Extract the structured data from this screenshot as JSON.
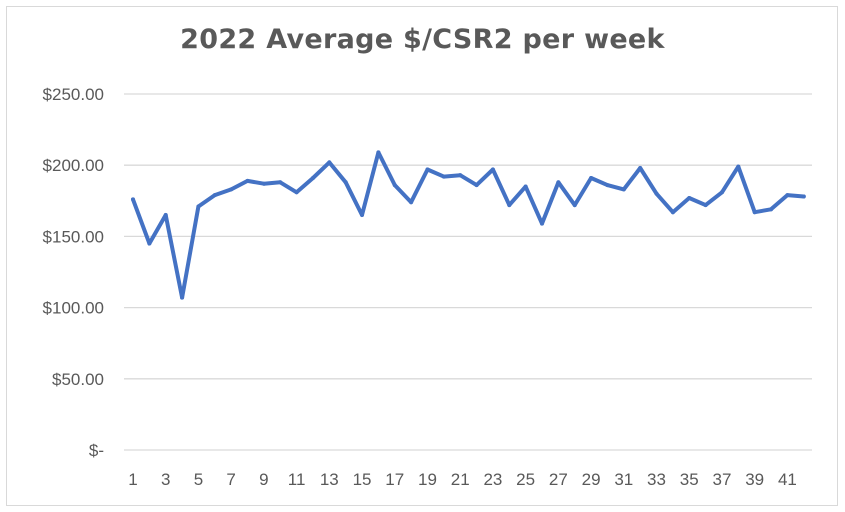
{
  "chart_data": {
    "type": "line",
    "title": "2022 Average $/CSR2 per week",
    "xlabel": "",
    "ylabel": "",
    "ylim": [
      0,
      250
    ],
    "yticks": [
      {
        "value": 250,
        "label": "$250.00"
      },
      {
        "value": 200,
        "label": "$200.00"
      },
      {
        "value": 150,
        "label": "$150.00"
      },
      {
        "value": 100,
        "label": "$100.00"
      },
      {
        "value": 50,
        "label": "$50.00"
      },
      {
        "value": 0,
        "label": "$-"
      }
    ],
    "xtick_labels": [
      "1",
      "3",
      "5",
      "7",
      "9",
      "11",
      "13",
      "15",
      "17",
      "19",
      "21",
      "23",
      "25",
      "27",
      "29",
      "31",
      "33",
      "35",
      "37",
      "39",
      "41"
    ],
    "grid": true,
    "legend": "none",
    "line_color": "#4472c4",
    "x": [
      1,
      2,
      3,
      4,
      5,
      6,
      7,
      8,
      9,
      10,
      11,
      12,
      13,
      14,
      15,
      16,
      17,
      18,
      19,
      20,
      21,
      22,
      23,
      24,
      25,
      26,
      27,
      28,
      29,
      30,
      31,
      32,
      33,
      34,
      35,
      36,
      37,
      38,
      39,
      40,
      41,
      42
    ],
    "values": [
      176,
      145,
      165,
      107,
      171,
      179,
      183,
      189,
      187,
      188,
      181,
      191,
      202,
      188,
      165,
      209,
      186,
      174,
      197,
      192,
      193,
      186,
      197,
      172,
      185,
      159,
      188,
      172,
      191,
      186,
      183,
      198,
      180,
      167,
      177,
      172,
      181,
      199,
      167,
      169,
      179,
      178
    ]
  }
}
